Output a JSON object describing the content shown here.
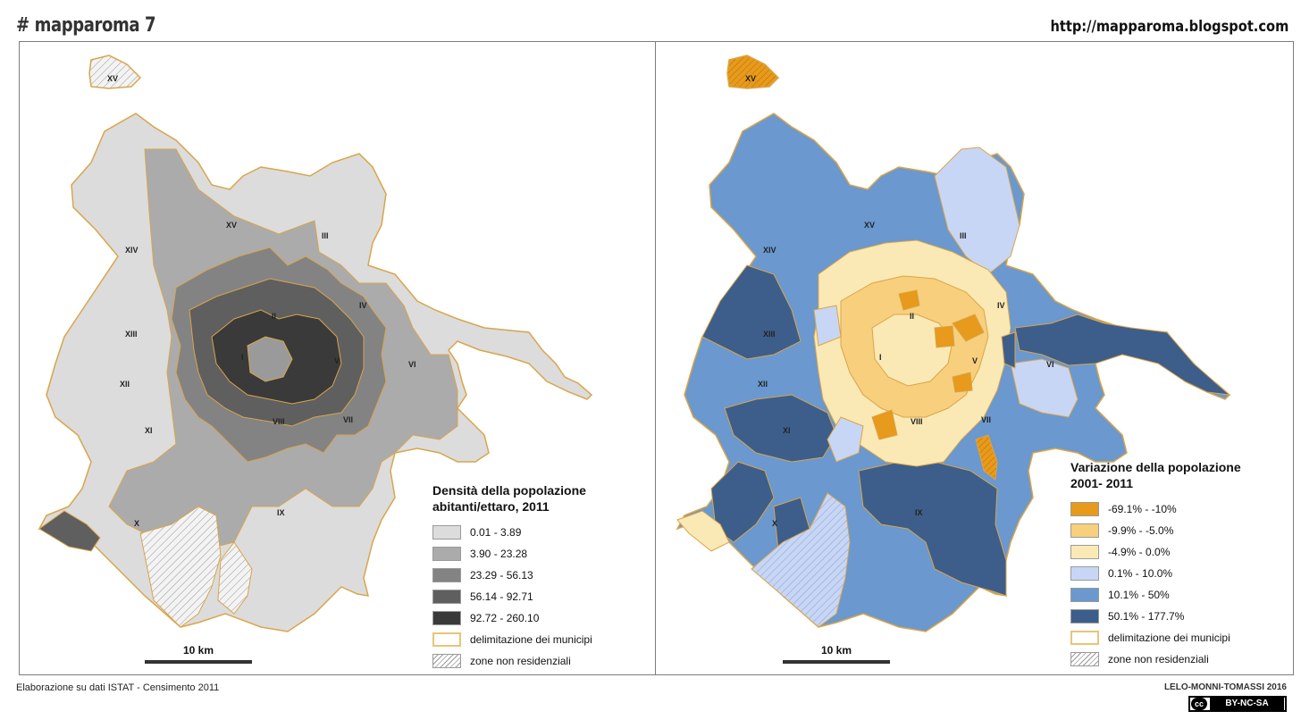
{
  "header": {
    "title": "# mapparoma 7",
    "url": "http://mapparoma.blogspot.com"
  },
  "maps": [
    {
      "id": "density",
      "legend_title_line1": "Densità della popolazione",
      "legend_title_line2": "abitanti/ettaro, 2011",
      "classes": [
        {
          "label": "0.01 - 3.89",
          "color": "#dcdcdc"
        },
        {
          "label": "3.90 - 23.28",
          "color": "#ababab"
        },
        {
          "label": "23.29 - 56.13",
          "color": "#838383"
        },
        {
          "label": "56.14 - 92.71",
          "color": "#5f5f5f"
        },
        {
          "label": "92.72 - 260.10",
          "color": "#3a3a3a"
        }
      ],
      "boundary_label": "delimitazione dei municipi",
      "hatch_label": "zone non residenziali",
      "scale_label": "10 km"
    },
    {
      "id": "variation",
      "legend_title_line1": "Variazione della popolazione",
      "legend_title_line2": "2001- 2011",
      "classes": [
        {
          "label": "-69.1% - -10%",
          "color": "#e79a1b"
        },
        {
          "label": "-9.9% - -5.0%",
          "color": "#f7cf7d"
        },
        {
          "label": "-4.9% - 0.0%",
          "color": "#fbe9b5"
        },
        {
          "label": "0.1% - 10.0%",
          "color": "#c8d6f5"
        },
        {
          "label": "10.1% - 50%",
          "color": "#6a98cf"
        },
        {
          "label": "50.1% - 177.7%",
          "color": "#3d5e8b"
        }
      ],
      "boundary_label": "delimitazione dei municipi",
      "hatch_label": "zone non residenziali",
      "scale_label": "10 km"
    }
  ],
  "municipi_labels": [
    "XV",
    "III",
    "XIV",
    "II",
    "IV",
    "XIII",
    "I",
    "V",
    "VI",
    "XII",
    "XI",
    "VIII",
    "VII",
    "X",
    "IX"
  ],
  "footer": {
    "source": "Elaborazione su dati ISTAT - Censimento 2011",
    "authors": "LELO-MONNI-TOMASSI 2016",
    "license": "BY-NC-SA",
    "license_logo": "cc"
  },
  "colors": {
    "boundary": "#d9a54a",
    "hatch": "#9a9a9a"
  }
}
